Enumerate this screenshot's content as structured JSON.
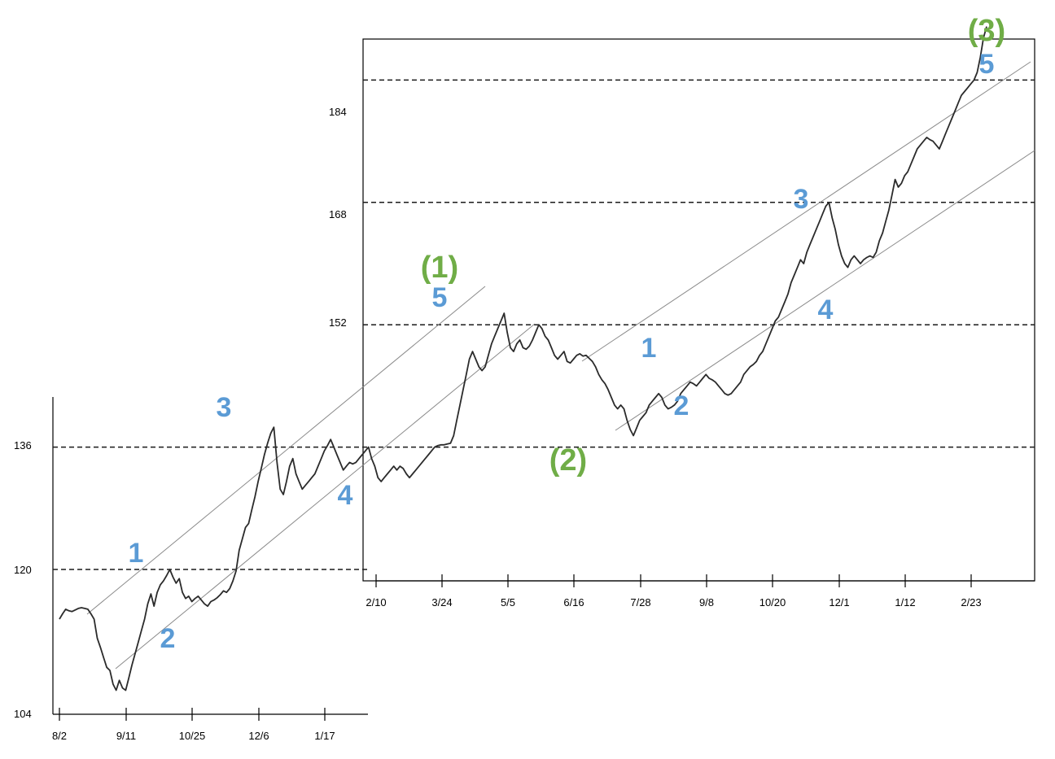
{
  "chart_data": {
    "type": "line",
    "title": "",
    "xlabel": "",
    "ylabel": "",
    "panels": [
      {
        "name": "left",
        "x_tick_labels": [
          "8/2",
          "9/11",
          "10/25",
          "12/6",
          "1/17"
        ],
        "ylim": [
          104,
          141
        ],
        "y_tick_labels": [
          "104",
          "120",
          "136"
        ],
        "grid_dashed_y": [
          120,
          136
        ]
      },
      {
        "name": "right",
        "x_tick_labels": [
          "2/10",
          "3/24",
          "5/5",
          "6/16",
          "7/28",
          "9/8",
          "10/20",
          "12/1",
          "1/12",
          "2/23"
        ],
        "ylim": [
          136,
          195
        ],
        "y_tick_labels": [
          "152",
          "168",
          "184"
        ],
        "grid_dashed_y": [
          136,
          152,
          168,
          184
        ]
      }
    ],
    "series": [
      {
        "values": [
          113.5,
          114.2,
          114.8,
          114.6,
          114.5,
          114.7,
          114.9,
          115.0,
          114.9,
          114.8,
          114.2,
          113.5,
          111.0,
          109.8,
          108.5,
          107.2,
          106.8,
          105.0,
          104.2,
          105.5,
          104.5,
          104.2,
          105.8,
          107.5,
          109.0,
          110.5,
          112.0,
          113.5,
          115.5,
          116.8,
          115.2,
          117.0,
          118.0,
          118.5,
          119.2,
          120.0,
          119.0,
          118.2,
          118.8,
          117.0,
          116.2,
          116.5,
          115.8,
          116.2,
          116.5,
          116.0,
          115.5,
          115.2,
          115.8,
          116.0,
          116.3,
          116.7,
          117.2,
          117.0,
          117.5,
          118.5,
          119.8,
          122.5,
          124.0,
          125.5,
          126.0,
          127.8,
          129.5,
          131.5,
          133.2,
          135.0,
          136.5,
          137.8,
          138.6,
          134.0,
          130.5,
          129.8,
          131.5,
          133.5,
          134.5,
          132.5,
          131.5,
          130.5,
          131.0,
          131.5,
          132.0,
          132.5,
          133.5,
          134.5,
          135.5,
          136.2,
          137.0,
          136.0,
          135.0,
          134.0,
          133.0,
          133.5,
          134.0,
          133.8,
          134.0,
          134.5,
          135.0,
          135.5,
          136.0,
          134.5,
          133.5,
          132.0,
          131.5,
          132.0,
          132.5,
          133.0,
          133.5,
          133.0,
          133.5,
          133.2,
          132.5,
          132.0,
          132.5,
          133.0,
          133.5,
          134.0,
          134.5,
          135.0,
          135.5,
          136.0,
          136.2,
          136.3,
          136.3,
          136.4,
          136.5,
          137.5,
          139.5,
          141.5,
          143.5,
          145.5,
          147.5,
          148.5,
          147.5,
          146.5,
          146.0,
          146.5,
          148.0,
          149.5,
          150.5,
          151.5,
          152.5,
          153.5,
          151.0,
          149.0,
          148.5,
          149.5,
          150.0,
          149.0,
          148.8,
          149.2,
          150.0,
          151.0,
          152.0,
          151.5,
          150.5,
          150.0,
          149.0,
          148.0,
          147.5,
          148.0,
          148.5,
          147.2,
          147.0,
          147.5,
          148.0,
          148.2,
          147.9,
          148.0,
          147.6,
          147.2,
          146.5,
          145.5,
          144.8,
          144.3,
          143.5,
          142.5,
          141.5,
          141.0,
          141.5,
          141.0,
          139.5,
          138.3,
          137.5,
          138.5,
          139.5,
          140.0,
          140.5,
          141.5,
          142.0,
          142.5,
          143.0,
          142.5,
          141.5,
          141.0,
          141.2,
          141.5,
          142.0,
          143.0,
          143.5,
          144.0,
          144.5,
          144.3,
          144.0,
          144.5,
          145.0,
          145.5,
          145.0,
          144.8,
          144.5,
          144.0,
          143.5,
          143.0,
          142.8,
          143.0,
          143.5,
          144.0,
          144.5,
          145.5,
          146.0,
          146.5,
          146.8,
          147.2,
          148.0,
          148.5,
          149.5,
          150.5,
          151.5,
          152.5,
          153.0,
          154.0,
          155.0,
          156.0,
          157.5,
          158.5,
          159.5,
          160.5,
          160.0,
          161.5,
          162.5,
          163.5,
          164.5,
          165.5,
          166.5,
          167.5,
          168.0,
          166.0,
          164.5,
          162.5,
          161.0,
          160.0,
          159.5,
          160.5,
          161.0,
          160.5,
          160.0,
          160.5,
          160.8,
          161.0,
          160.8,
          161.5,
          163.0,
          164.0,
          165.5,
          167.0,
          169.0,
          171.0,
          170.0,
          170.5,
          171.5,
          172.0,
          173.0,
          174.0,
          175.0,
          175.5,
          176.0,
          176.5,
          176.2,
          176.0,
          175.5,
          175.0,
          176.0,
          177.0,
          178.0,
          179.0,
          180.0,
          181.0,
          182.0,
          182.5,
          183.0,
          183.5,
          184.0,
          185.0,
          187.0,
          189.5,
          191.0
        ]
      }
    ],
    "wave_labels": {
      "left_1": "1",
      "left_2": "2",
      "left_3": "3",
      "left_4": "4",
      "top_1": "(1)",
      "top_5": "5",
      "bottom_2": "(2)",
      "right_1": "1",
      "right_2": "2",
      "right_3": "3",
      "right_4": "4",
      "top_3": "(3)",
      "final_5": "5"
    },
    "colors": {
      "line": "#2b2b2b",
      "channel": "#8a8a8a",
      "grid": "#1a1a1a",
      "blue_label": "#5b9bd5",
      "green_label": "#70ad47"
    }
  }
}
